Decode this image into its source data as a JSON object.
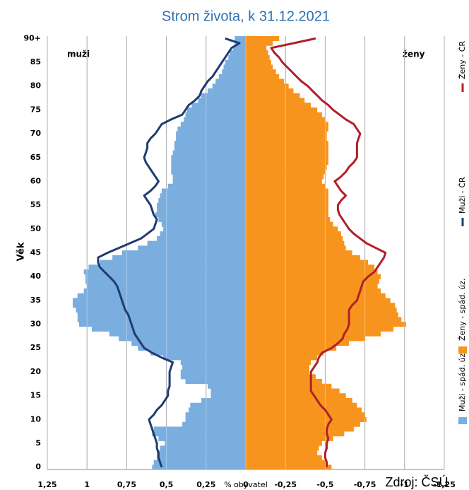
{
  "chart_data": {
    "type": "bar",
    "orientation": "horizontal",
    "title": "Strom života, k 31.12.2021",
    "y_label": "Věk",
    "x_label": "% obyvatel",
    "source": "Zdroj: ČSÚ",
    "annotations": [
      "muži",
      "ženy"
    ],
    "categories": [
      "0",
      null,
      null,
      null,
      null,
      "5",
      null,
      null,
      null,
      null,
      "10",
      null,
      null,
      null,
      null,
      "15",
      null,
      null,
      null,
      null,
      "20",
      null,
      null,
      null,
      null,
      "25",
      null,
      null,
      null,
      null,
      "30",
      null,
      null,
      null,
      null,
      "35",
      null,
      null,
      null,
      null,
      "40",
      null,
      null,
      null,
      null,
      "45",
      null,
      null,
      null,
      null,
      "50",
      null,
      null,
      null,
      null,
      "55",
      null,
      null,
      null,
      null,
      "60",
      null,
      null,
      null,
      null,
      "65",
      null,
      null,
      null,
      null,
      "70",
      null,
      null,
      null,
      null,
      "75",
      null,
      null,
      null,
      null,
      "80",
      null,
      null,
      null,
      null,
      "85",
      null,
      null,
      null,
      null,
      "90+"
    ],
    "xlim": [
      1.25,
      -1.25
    ],
    "xticks": [
      {
        "value": 1.25,
        "label": "1,25"
      },
      1,
      {
        "value": 0.75,
        "label": "0,75"
      },
      {
        "value": 0.5,
        "label": "0,5"
      },
      {
        "value": 0.25,
        "label": "0,25"
      },
      0,
      {
        "value": -0.25,
        "label": "-0,25"
      },
      {
        "value": -0.5,
        "label": "-0,5"
      },
      {
        "value": -0.75,
        "label": "-0,75"
      },
      -1,
      {
        "value": -1.25,
        "label": "-1,25"
      }
    ],
    "grid": true,
    "series": [
      {
        "name": "Muži - spád. úz.",
        "type": "bar",
        "color": "#7aaedf",
        "values": [
          0.59,
          0.58,
          0.56,
          0.56,
          0.54,
          0.51,
          0.55,
          0.59,
          0.58,
          0.4,
          0.38,
          0.38,
          0.36,
          0.35,
          0.28,
          0.22,
          0.22,
          0.24,
          0.38,
          0.41,
          0.41,
          0.4,
          0.41,
          0.52,
          0.6,
          0.68,
          0.72,
          0.8,
          0.86,
          0.97,
          1.05,
          1.06,
          1.06,
          1.07,
          1.09,
          1.09,
          1.06,
          1.02,
          1.0,
          1.01,
          1.01,
          1.02,
          0.99,
          0.92,
          0.84,
          0.78,
          0.68,
          0.62,
          0.56,
          0.54,
          0.52,
          0.53,
          0.55,
          0.57,
          0.56,
          0.56,
          0.55,
          0.54,
          0.53,
          0.49,
          0.46,
          0.46,
          0.47,
          0.47,
          0.47,
          0.47,
          0.46,
          0.45,
          0.45,
          0.44,
          0.44,
          0.43,
          0.41,
          0.39,
          0.38,
          0.37,
          0.34,
          0.3,
          0.28,
          0.24,
          0.21,
          0.19,
          0.17,
          0.15,
          0.14,
          0.13,
          0.11,
          0.1,
          0.08,
          0.07,
          0.07
        ]
      },
      {
        "name": "Ženy - spád. úz.",
        "type": "bar",
        "color": "#f7941d",
        "values": [
          -0.54,
          -0.51,
          -0.48,
          -0.45,
          -0.46,
          -0.48,
          -0.55,
          -0.62,
          -0.68,
          -0.72,
          -0.76,
          -0.75,
          -0.73,
          -0.7,
          -0.67,
          -0.63,
          -0.59,
          -0.54,
          -0.48,
          -0.44,
          -0.4,
          -0.4,
          -0.41,
          -0.45,
          -0.49,
          -0.57,
          -0.65,
          -0.75,
          -0.85,
          -0.93,
          -1.01,
          -0.98,
          -0.96,
          -0.95,
          -0.94,
          -0.91,
          -0.88,
          -0.85,
          -0.83,
          -0.84,
          -0.85,
          -0.83,
          -0.81,
          -0.77,
          -0.72,
          -0.67,
          -0.63,
          -0.62,
          -0.61,
          -0.6,
          -0.58,
          -0.55,
          -0.53,
          -0.52,
          -0.52,
          -0.52,
          -0.52,
          -0.52,
          -0.52,
          -0.5,
          -0.48,
          -0.49,
          -0.5,
          -0.51,
          -0.52,
          -0.52,
          -0.52,
          -0.52,
          -0.52,
          -0.51,
          -0.51,
          -0.52,
          -0.52,
          -0.5,
          -0.48,
          -0.45,
          -0.41,
          -0.37,
          -0.34,
          -0.3,
          -0.27,
          -0.24,
          -0.21,
          -0.19,
          -0.17,
          -0.16,
          -0.15,
          -0.14,
          -0.13,
          -0.17,
          -0.21
        ]
      },
      {
        "name": "Muži - ČR",
        "type": "line",
        "color": "#1f3c72",
        "values": [
          0.53,
          0.54,
          0.55,
          0.55,
          0.56,
          0.56,
          0.57,
          0.58,
          0.59,
          0.6,
          0.61,
          0.58,
          0.56,
          0.53,
          0.51,
          0.49,
          0.49,
          0.48,
          0.48,
          0.48,
          0.48,
          0.47,
          0.46,
          0.53,
          0.59,
          0.64,
          0.66,
          0.68,
          0.7,
          0.71,
          0.72,
          0.73,
          0.74,
          0.76,
          0.77,
          0.78,
          0.79,
          0.8,
          0.81,
          0.83,
          0.86,
          0.89,
          0.92,
          0.93,
          0.93,
          0.87,
          0.8,
          0.73,
          0.66,
          0.62,
          0.58,
          0.57,
          0.56,
          0.58,
          0.59,
          0.6,
          0.62,
          0.64,
          0.6,
          0.57,
          0.55,
          0.57,
          0.59,
          0.61,
          0.63,
          0.64,
          0.63,
          0.62,
          0.62,
          0.6,
          0.57,
          0.55,
          0.53,
          0.47,
          0.4,
          0.38,
          0.36,
          0.32,
          0.29,
          0.28,
          0.26,
          0.24,
          0.21,
          0.19,
          0.17,
          0.15,
          0.13,
          0.11,
          0.09,
          0.04,
          0.13
        ]
      },
      {
        "name": "Ženy - ČR",
        "type": "line",
        "color": "#b0202a",
        "values": [
          -0.51,
          -0.51,
          -0.5,
          -0.5,
          -0.51,
          -0.51,
          -0.52,
          -0.51,
          -0.51,
          -0.52,
          -0.54,
          -0.52,
          -0.5,
          -0.47,
          -0.45,
          -0.43,
          -0.41,
          -0.41,
          -0.41,
          -0.41,
          -0.41,
          -0.43,
          -0.45,
          -0.46,
          -0.48,
          -0.54,
          -0.58,
          -0.61,
          -0.62,
          -0.64,
          -0.65,
          -0.65,
          -0.65,
          -0.65,
          -0.67,
          -0.7,
          -0.71,
          -0.72,
          -0.73,
          -0.74,
          -0.77,
          -0.81,
          -0.83,
          -0.85,
          -0.87,
          -0.88,
          -0.82,
          -0.76,
          -0.72,
          -0.68,
          -0.65,
          -0.63,
          -0.61,
          -0.59,
          -0.58,
          -0.58,
          -0.6,
          -0.63,
          -0.6,
          -0.58,
          -0.56,
          -0.6,
          -0.63,
          -0.65,
          -0.68,
          -0.7,
          -0.7,
          -0.7,
          -0.7,
          -0.71,
          -0.72,
          -0.7,
          -0.68,
          -0.63,
          -0.59,
          -0.55,
          -0.52,
          -0.48,
          -0.45,
          -0.42,
          -0.39,
          -0.35,
          -0.32,
          -0.29,
          -0.26,
          -0.23,
          -0.21,
          -0.18,
          -0.16,
          -0.3,
          -0.44
        ]
      }
    ]
  }
}
